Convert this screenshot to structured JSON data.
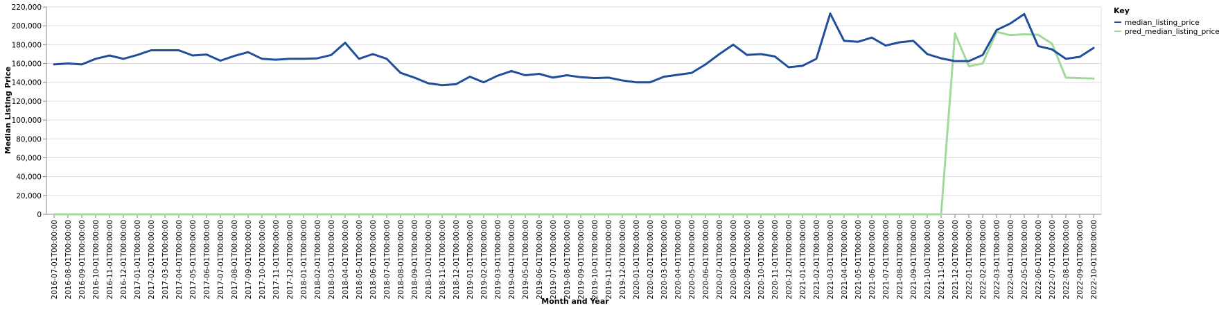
{
  "chart_data": {
    "type": "line",
    "xlabel": "Month and Year",
    "ylabel": "Median Listing Price",
    "ylim": [
      0,
      220000
    ],
    "yticks": [
      0,
      20000,
      40000,
      60000,
      80000,
      100000,
      120000,
      140000,
      160000,
      180000,
      200000,
      220000
    ],
    "ytick_labels": [
      "0",
      "20,000",
      "40,000",
      "60,000",
      "80,000",
      "100,000",
      "120,000",
      "140,000",
      "160,000",
      "180,000",
      "200,000",
      "220,000"
    ],
    "grid": true,
    "legend": {
      "title": "Key",
      "placement": "top-right-outside"
    },
    "x": [
      "2016-07-01T00:00:00",
      "2016-08-01T00:00:00",
      "2016-09-01T00:00:00",
      "2016-10-01T00:00:00",
      "2016-11-01T00:00:00",
      "2016-12-01T00:00:00",
      "2017-01-01T00:00:00",
      "2017-02-01T00:00:00",
      "2017-03-01T00:00:00",
      "2017-04-01T00:00:00",
      "2017-05-01T00:00:00",
      "2017-06-01T00:00:00",
      "2017-07-01T00:00:00",
      "2017-08-01T00:00:00",
      "2017-09-01T00:00:00",
      "2017-10-01T00:00:00",
      "2017-11-01T00:00:00",
      "2017-12-01T00:00:00",
      "2018-01-01T00:00:00",
      "2018-02-01T00:00:00",
      "2018-03-01T00:00:00",
      "2018-04-01T00:00:00",
      "2018-05-01T00:00:00",
      "2018-06-01T00:00:00",
      "2018-07-01T00:00:00",
      "2018-08-01T00:00:00",
      "2018-09-01T00:00:00",
      "2018-10-01T00:00:00",
      "2018-11-01T00:00:00",
      "2018-12-01T00:00:00",
      "2019-01-01T00:00:00",
      "2019-02-01T00:00:00",
      "2019-03-01T00:00:00",
      "2019-04-01T00:00:00",
      "2019-05-01T00:00:00",
      "2019-06-01T00:00:00",
      "2019-07-01T00:00:00",
      "2019-08-01T00:00:00",
      "2019-09-01T00:00:00",
      "2019-10-01T00:00:00",
      "2019-11-01T00:00:00",
      "2019-12-01T00:00:00",
      "2020-01-01T00:00:00",
      "2020-02-01T00:00:00",
      "2020-03-01T00:00:00",
      "2020-04-01T00:00:00",
      "2020-05-01T00:00:00",
      "2020-06-01T00:00:00",
      "2020-07-01T00:00:00",
      "2020-08-01T00:00:00",
      "2020-09-01T00:00:00",
      "2020-10-01T00:00:00",
      "2020-11-01T00:00:00",
      "2020-12-01T00:00:00",
      "2021-01-01T00:00:00",
      "2021-02-01T00:00:00",
      "2021-03-01T00:00:00",
      "2021-04-01T00:00:00",
      "2021-05-01T00:00:00",
      "2021-06-01T00:00:00",
      "2021-07-01T00:00:00",
      "2021-08-01T00:00:00",
      "2021-09-01T00:00:00",
      "2021-10-01T00:00:00",
      "2021-11-01T00:00:00",
      "2021-12-01T00:00:00",
      "2022-01-01T00:00:00",
      "2022-02-01T00:00:00",
      "2022-03-01T00:00:00",
      "2022-04-01T00:00:00",
      "2022-05-01T00:00:00",
      "2022-06-01T00:00:00",
      "2022-07-01T00:00:00",
      "2022-08-01T00:00:00",
      "2022-09-01T00:00:00",
      "2022-10-01T00:00:00"
    ],
    "series": [
      {
        "name": "median_listing_price",
        "color": "#1f4e9a",
        "values": [
          159000,
          160000,
          159000,
          165000,
          168500,
          165000,
          169000,
          174000,
          174000,
          174000,
          168500,
          169500,
          163000,
          168000,
          172000,
          165000,
          164000,
          165000,
          165000,
          165500,
          169000,
          182000,
          165000,
          170000,
          165000,
          150000,
          145000,
          139000,
          137000,
          138000,
          146000,
          140000,
          147000,
          152000,
          147500,
          149000,
          145000,
          147500,
          145500,
          144500,
          145000,
          142000,
          140000,
          140000,
          146000,
          148000,
          150000,
          159000,
          170000,
          180000,
          169000,
          170000,
          167500,
          156000,
          157500,
          165000,
          213000,
          184000,
          183000,
          187500,
          179000,
          182500,
          184000,
          170000,
          165500,
          162500,
          162500,
          169000,
          195500,
          202500,
          212500,
          178500,
          175000,
          165000,
          167000,
          176500
        ]
      },
      {
        "name": "pred_median_listing_price",
        "color": "#a1d99b",
        "values": [
          0,
          0,
          0,
          0,
          0,
          0,
          0,
          0,
          0,
          0,
          0,
          0,
          0,
          0,
          0,
          0,
          0,
          0,
          0,
          0,
          0,
          0,
          0,
          0,
          0,
          0,
          0,
          0,
          0,
          0,
          0,
          0,
          0,
          0,
          0,
          0,
          0,
          0,
          0,
          0,
          0,
          0,
          0,
          0,
          0,
          0,
          0,
          0,
          0,
          0,
          0,
          0,
          0,
          0,
          0,
          0,
          0,
          0,
          0,
          0,
          0,
          0,
          0,
          0,
          0,
          192000,
          157000,
          160000,
          193500,
          190000,
          191000,
          190500,
          181000,
          145000,
          144500,
          144000
        ]
      }
    ]
  }
}
